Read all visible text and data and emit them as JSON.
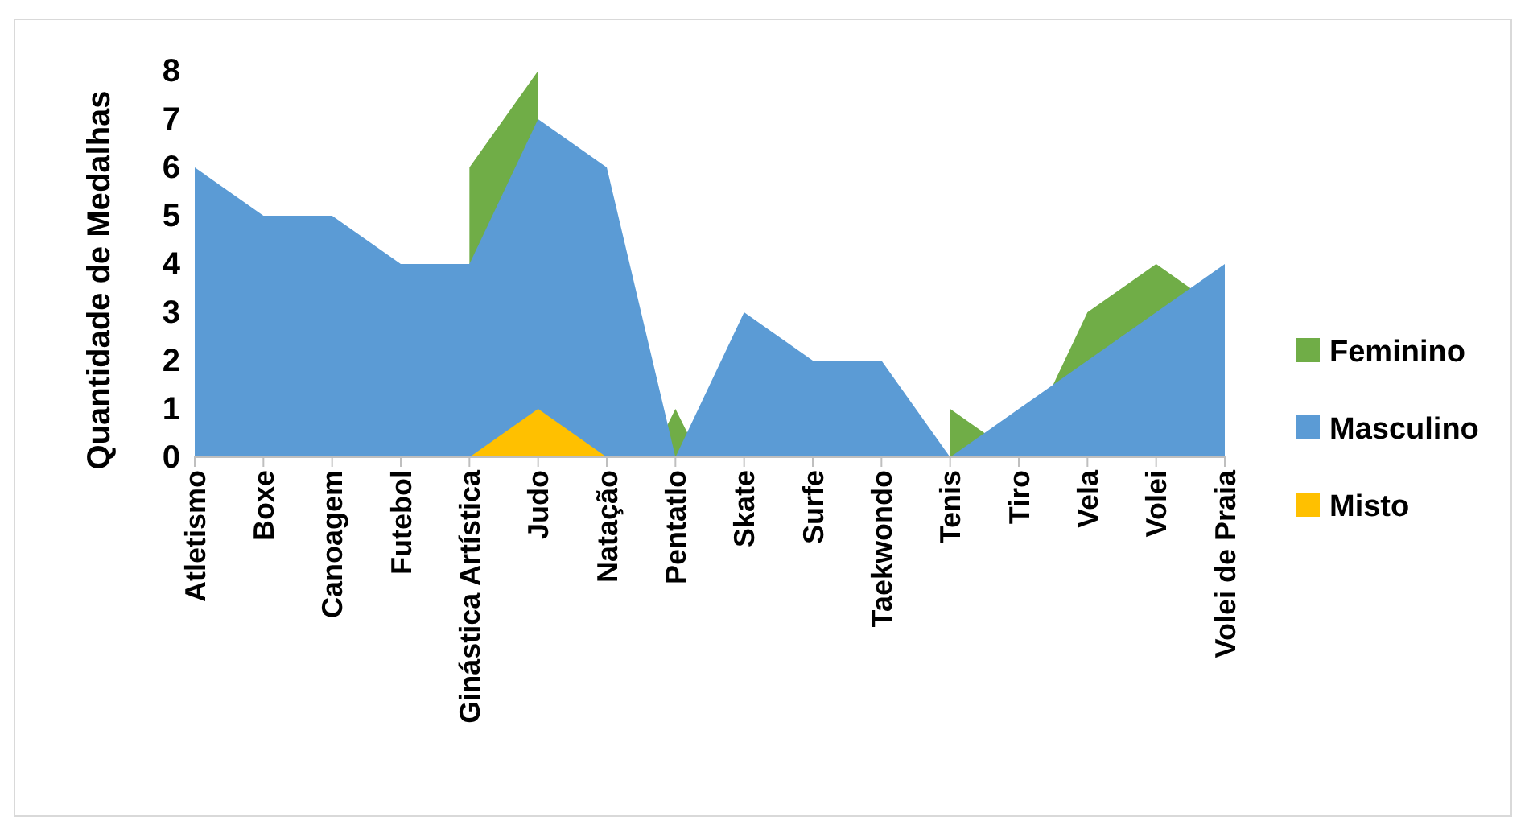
{
  "chart_data": {
    "type": "area",
    "ylabel": "Quantidade de Medalhas",
    "categories": [
      "Atletismo",
      "Boxe",
      "Canoagem",
      "Futebol",
      "Ginástica Artística",
      "Judo",
      "Natação",
      "Pentatlo",
      "Skate",
      "Surfe",
      "Taekwondo",
      "Tenis",
      "Tiro",
      "Vela",
      "Volei",
      "Volei de Praia"
    ],
    "series": [
      {
        "name": "Feminino",
        "color": "#70ad47",
        "values": [
          null,
          null,
          null,
          null,
          6,
          8,
          null,
          1,
          null,
          null,
          null,
          1,
          0,
          3,
          4,
          3
        ]
      },
      {
        "name": "Masculino",
        "color": "#5b9bd5",
        "values": [
          6,
          5,
          5,
          4,
          4,
          7,
          6,
          0,
          3,
          2,
          2,
          0,
          1,
          2,
          3,
          4
        ]
      },
      {
        "name": "Misto",
        "color": "#ffc000",
        "values": [
          null,
          null,
          null,
          null,
          0,
          1,
          0,
          null,
          null,
          null,
          null,
          null,
          null,
          null,
          null,
          null
        ]
      }
    ],
    "ylim": [
      0,
      8
    ],
    "yticks": [
      0,
      1,
      2,
      3,
      4,
      5,
      6,
      7,
      8
    ],
    "grid": false,
    "legend": "right"
  }
}
